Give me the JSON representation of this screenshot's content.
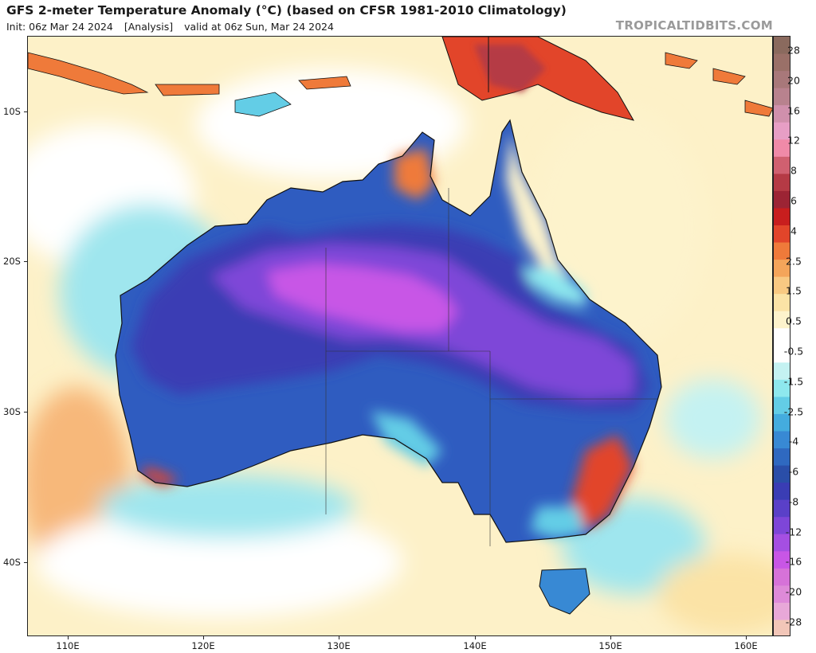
{
  "header": {
    "title": "GFS 2-meter Temperature Anomaly (°C) (based on CFSR 1981-2010 Climatology)",
    "init": "Init: 06z Mar 24 2024",
    "analysis": "[Analysis]",
    "valid": "valid at 06z Sun, Mar 24 2024",
    "credit": "TROPICALTIDBITS.COM"
  },
  "map": {
    "region": "Australia",
    "lat_labels": [
      "10S",
      "20S",
      "30S",
      "40S"
    ],
    "lon_labels": [
      "110E",
      "120E",
      "130E",
      "140E",
      "150E",
      "160E"
    ],
    "lon_range": [
      107,
      162
    ],
    "lat_range": [
      -45.5,
      -5
    ]
  },
  "colorbar": {
    "labels": [
      "28",
      "20",
      "16",
      "12",
      "8",
      "6",
      "4",
      "2.5",
      "1.5",
      "0.5",
      "-0.5",
      "-1.5",
      "-2.5",
      "-4",
      "-6",
      "-8",
      "-12",
      "-16",
      "-20",
      "-28"
    ],
    "colors": [
      "#8a6a5e",
      "#9a7068",
      "#a8787a",
      "#b8828e",
      "#d090ac",
      "#e79ec5",
      "#f08aa8",
      "#d06070",
      "#b53a45",
      "#9c2434",
      "#c81e1e",
      "#e2452a",
      "#ef7a3a",
      "#f4a55a",
      "#f8c982",
      "#fbe3a6",
      "#fdf3cc",
      "#ffffff",
      "#ffffff",
      "#c4f2f2",
      "#8ee8ee",
      "#63cde6",
      "#44acde",
      "#3889d4",
      "#2f69c0",
      "#2a4ea8",
      "#3a3db4",
      "#5a40c8",
      "#7e46d8",
      "#a54fe2",
      "#c856e6",
      "#d672d8",
      "#de8ad8",
      "#e8a8d8",
      "#f2c6b8"
    ]
  }
}
